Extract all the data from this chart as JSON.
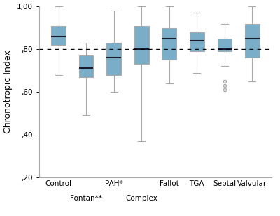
{
  "categories": [
    "Control",
    "Fontan**",
    "PAH*",
    "Complex",
    "Fallot",
    "TGA",
    "Septal",
    "Valvular"
  ],
  "box_data": {
    "Control": {
      "q1": 0.82,
      "median": 0.86,
      "q3": 0.91,
      "whislo": 0.68,
      "whishi": 1.0,
      "fliers": []
    },
    "Fontan**": {
      "q1": 0.67,
      "median": 0.71,
      "q3": 0.77,
      "whislo": 0.49,
      "whishi": 0.83,
      "fliers": []
    },
    "PAH*": {
      "q1": 0.68,
      "median": 0.76,
      "q3": 0.83,
      "whislo": 0.6,
      "whishi": 0.98,
      "fliers": []
    },
    "Complex": {
      "q1": 0.73,
      "median": 0.8,
      "q3": 0.91,
      "whislo": 0.37,
      "whishi": 1.0,
      "fliers": []
    },
    "Fallot": {
      "q1": 0.75,
      "median": 0.85,
      "q3": 0.9,
      "whislo": 0.64,
      "whishi": 1.0,
      "fliers": []
    },
    "TGA": {
      "q1": 0.79,
      "median": 0.84,
      "q3": 0.88,
      "whislo": 0.69,
      "whishi": 0.97,
      "fliers": []
    },
    "Septal": {
      "q1": 0.79,
      "median": 0.8,
      "q3": 0.85,
      "whislo": 0.72,
      "whishi": 0.92,
      "fliers": [
        0.65,
        0.63,
        0.61
      ]
    },
    "Valvular": {
      "q1": 0.76,
      "median": 0.85,
      "q3": 0.92,
      "whislo": 0.65,
      "whishi": 1.0,
      "fliers": []
    }
  },
  "box_color": "#7aaec8",
  "box_edge_color": "#7aaec8",
  "median_color": "#1a1a2e",
  "whisker_color": "#aaaaaa",
  "flier_color": "#aaaaaa",
  "dotted_line": 0.8,
  "ylabel": "Chronotropic Index",
  "ylim": [
    0.2,
    1.0
  ],
  "yticks": [
    0.2,
    0.4,
    0.6,
    0.8,
    1.0
  ],
  "ytick_labels": [
    ",20",
    ",40",
    ",60",
    ",80",
    "1,00"
  ],
  "background_color": "#ffffff",
  "tick_label_fontsize": 7.5,
  "ylabel_fontsize": 9.0,
  "top_labels": [
    "Control",
    "",
    "PAH*",
    "",
    "Fallot",
    "TGA",
    "Septal",
    "Valvular"
  ],
  "bottom_labels": [
    "",
    "Fontan**",
    "",
    "Complex",
    "",
    "",
    "",
    ""
  ]
}
